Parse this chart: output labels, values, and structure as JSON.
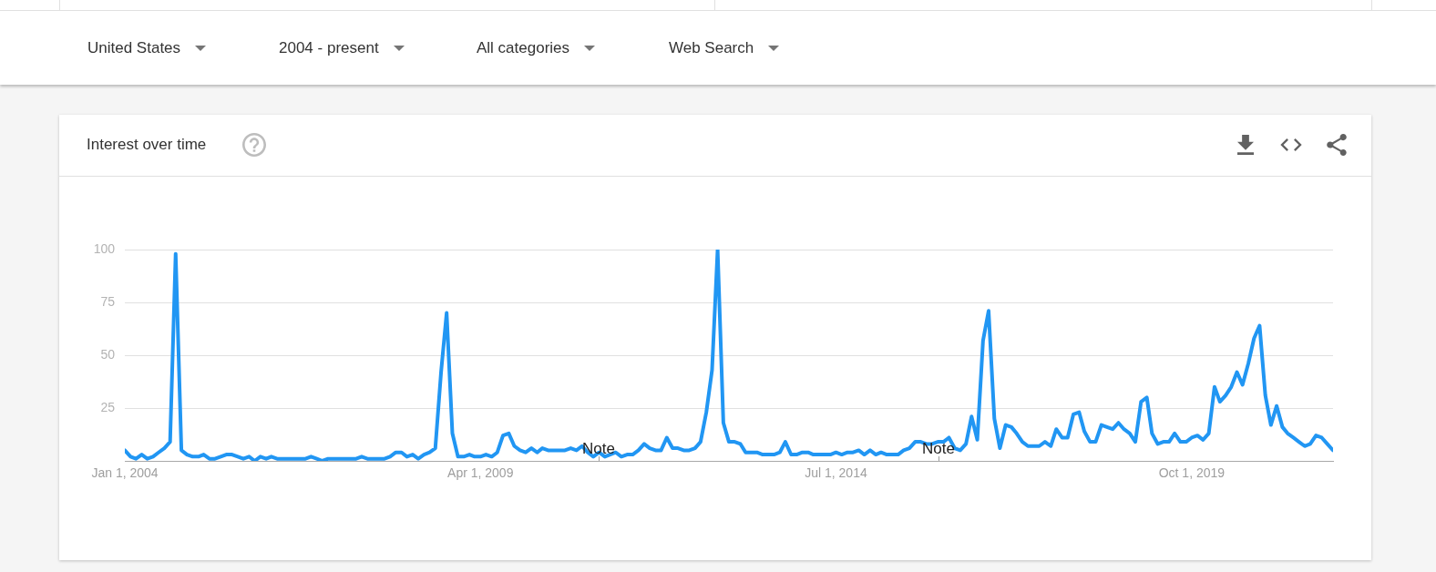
{
  "chart_data": {
    "type": "line",
    "title": "Interest over time",
    "annotations": [
      "United States",
      "2004 - present",
      "All categories",
      "Web Search",
      "Note",
      "Note"
    ],
    "x": [
      "2004-01",
      "2004-02",
      "2004-03",
      "2004-04",
      "2004-05",
      "2004-06",
      "2004-07",
      "2004-08",
      "2004-09",
      "2004-10",
      "2004-11",
      "2004-12",
      "2005-01",
      "2005-02",
      "2005-03",
      "2005-04",
      "2005-05",
      "2005-06",
      "2005-07",
      "2005-08",
      "2005-09",
      "2005-10",
      "2005-11",
      "2005-12",
      "2006-01",
      "2006-02",
      "2006-03",
      "2006-04",
      "2006-05",
      "2006-06",
      "2006-07",
      "2006-08",
      "2006-09",
      "2006-10",
      "2006-11",
      "2006-12",
      "2007-01",
      "2007-02",
      "2007-03",
      "2007-04",
      "2007-05",
      "2007-06",
      "2007-07",
      "2007-08",
      "2007-09",
      "2007-10",
      "2007-11",
      "2007-12",
      "2008-01",
      "2008-02",
      "2008-03",
      "2008-04",
      "2008-05",
      "2008-06",
      "2008-07",
      "2008-08",
      "2008-09",
      "2008-10",
      "2008-11",
      "2008-12",
      "2009-01",
      "2009-02",
      "2009-03",
      "2009-04",
      "2009-05",
      "2009-06",
      "2009-07",
      "2009-08",
      "2009-09",
      "2009-10",
      "2009-11",
      "2009-12",
      "2010-01",
      "2010-02",
      "2010-03",
      "2010-04",
      "2010-05",
      "2010-06",
      "2010-07",
      "2010-08",
      "2010-09",
      "2010-10",
      "2010-11",
      "2010-12",
      "2011-01",
      "2011-02",
      "2011-03",
      "2011-04",
      "2011-05",
      "2011-06",
      "2011-07",
      "2011-08",
      "2011-09",
      "2011-10",
      "2011-11",
      "2011-12",
      "2012-01",
      "2012-02",
      "2012-03",
      "2012-04",
      "2012-05",
      "2012-06",
      "2012-07",
      "2012-08",
      "2012-09",
      "2012-10",
      "2012-11",
      "2012-12",
      "2013-01",
      "2013-02",
      "2013-03",
      "2013-04",
      "2013-05",
      "2013-06",
      "2013-07",
      "2013-08",
      "2013-09",
      "2013-10",
      "2013-11",
      "2013-12",
      "2014-01",
      "2014-02",
      "2014-03",
      "2014-04",
      "2014-05",
      "2014-06",
      "2014-07",
      "2014-08",
      "2014-09",
      "2014-10",
      "2014-11",
      "2014-12",
      "2015-01",
      "2015-02",
      "2015-03",
      "2015-04",
      "2015-05",
      "2015-06",
      "2015-07",
      "2015-08",
      "2015-09",
      "2015-10",
      "2015-11",
      "2015-12",
      "2016-01",
      "2016-02",
      "2016-03",
      "2016-04",
      "2016-05",
      "2016-06",
      "2016-07",
      "2016-08",
      "2016-09",
      "2016-10",
      "2016-11",
      "2016-12",
      "2017-01",
      "2017-02",
      "2017-03",
      "2017-04",
      "2017-05",
      "2017-06",
      "2017-07",
      "2017-08",
      "2017-09",
      "2017-10",
      "2017-11",
      "2017-12",
      "2018-01",
      "2018-02",
      "2018-03",
      "2018-04",
      "2018-05",
      "2018-06",
      "2018-07",
      "2018-08",
      "2018-09",
      "2018-10",
      "2018-11",
      "2018-12",
      "2019-01",
      "2019-02",
      "2019-03",
      "2019-04",
      "2019-05",
      "2019-06",
      "2019-07",
      "2019-08",
      "2019-09",
      "2019-10",
      "2019-11",
      "2019-12",
      "2020-01",
      "2020-02",
      "2020-03",
      "2020-04",
      "2020-05",
      "2020-06",
      "2020-07",
      "2020-08",
      "2020-09",
      "2020-10",
      "2020-11",
      "2020-12",
      "2021-01",
      "2021-02",
      "2021-03",
      "2021-04",
      "2021-05",
      "2021-06",
      "2021-07",
      "2021-08",
      "2021-09",
      "2021-10",
      "2021-11"
    ],
    "values": [
      5,
      2,
      1,
      3,
      1,
      2,
      4,
      6,
      9,
      98,
      5,
      3,
      2,
      2,
      3,
      1,
      1,
      2,
      3,
      3,
      2,
      1,
      2,
      0,
      2,
      1,
      2,
      1,
      1,
      1,
      1,
      1,
      1,
      2,
      1,
      0,
      1,
      1,
      1,
      1,
      1,
      1,
      2,
      1,
      1,
      1,
      1,
      2,
      4,
      4,
      2,
      3,
      1,
      3,
      4,
      6,
      42,
      70,
      13,
      2,
      2,
      3,
      2,
      2,
      3,
      2,
      4,
      12,
      13,
      7,
      5,
      4,
      6,
      4,
      6,
      5,
      5,
      5,
      5,
      6,
      5,
      7,
      4,
      2,
      4,
      2,
      3,
      4,
      2,
      3,
      3,
      5,
      8,
      6,
      5,
      5,
      11,
      6,
      6,
      5,
      5,
      6,
      9,
      23,
      43,
      100,
      18,
      9,
      9,
      8,
      4,
      4,
      4,
      3,
      3,
      3,
      4,
      9,
      3,
      3,
      4,
      4,
      3,
      3,
      3,
      3,
      4,
      3,
      4,
      4,
      5,
      3,
      5,
      3,
      4,
      3,
      3,
      3,
      5,
      6,
      9,
      9,
      8,
      8,
      9,
      9,
      11,
      6,
      5,
      8,
      21,
      10,
      57,
      71,
      20,
      6,
      17,
      16,
      13,
      9,
      7,
      7,
      7,
      9,
      7,
      15,
      11,
      11,
      22,
      23,
      14,
      9,
      9,
      17,
      16,
      15,
      18,
      15,
      13,
      9,
      28,
      30,
      13,
      8,
      9,
      9,
      13,
      9,
      9,
      11,
      12,
      10,
      13,
      35,
      28,
      31,
      35,
      42,
      36,
      46,
      58,
      64,
      31,
      17,
      26,
      16,
      13,
      11,
      9,
      7,
      8,
      12,
      11,
      8,
      5
    ],
    "color": "#2196f3",
    "xlim": [
      "2004-01",
      "2021-11"
    ],
    "xticks": [
      {
        "value": "2004-01-01",
        "label": "Jan 1, 2004"
      },
      {
        "value": "2009-04-01",
        "label": "Apr 1, 2009"
      },
      {
        "value": "2014-07-01",
        "label": "Jul 1, 2014"
      },
      {
        "value": "2019-10-01",
        "label": "Oct 1, 2019"
      }
    ],
    "ylim": [
      0,
      100
    ],
    "yticks": [
      25,
      50,
      75,
      100
    ],
    "grid": "y",
    "legend": false,
    "marker": "none",
    "line_style": "solid"
  }
}
